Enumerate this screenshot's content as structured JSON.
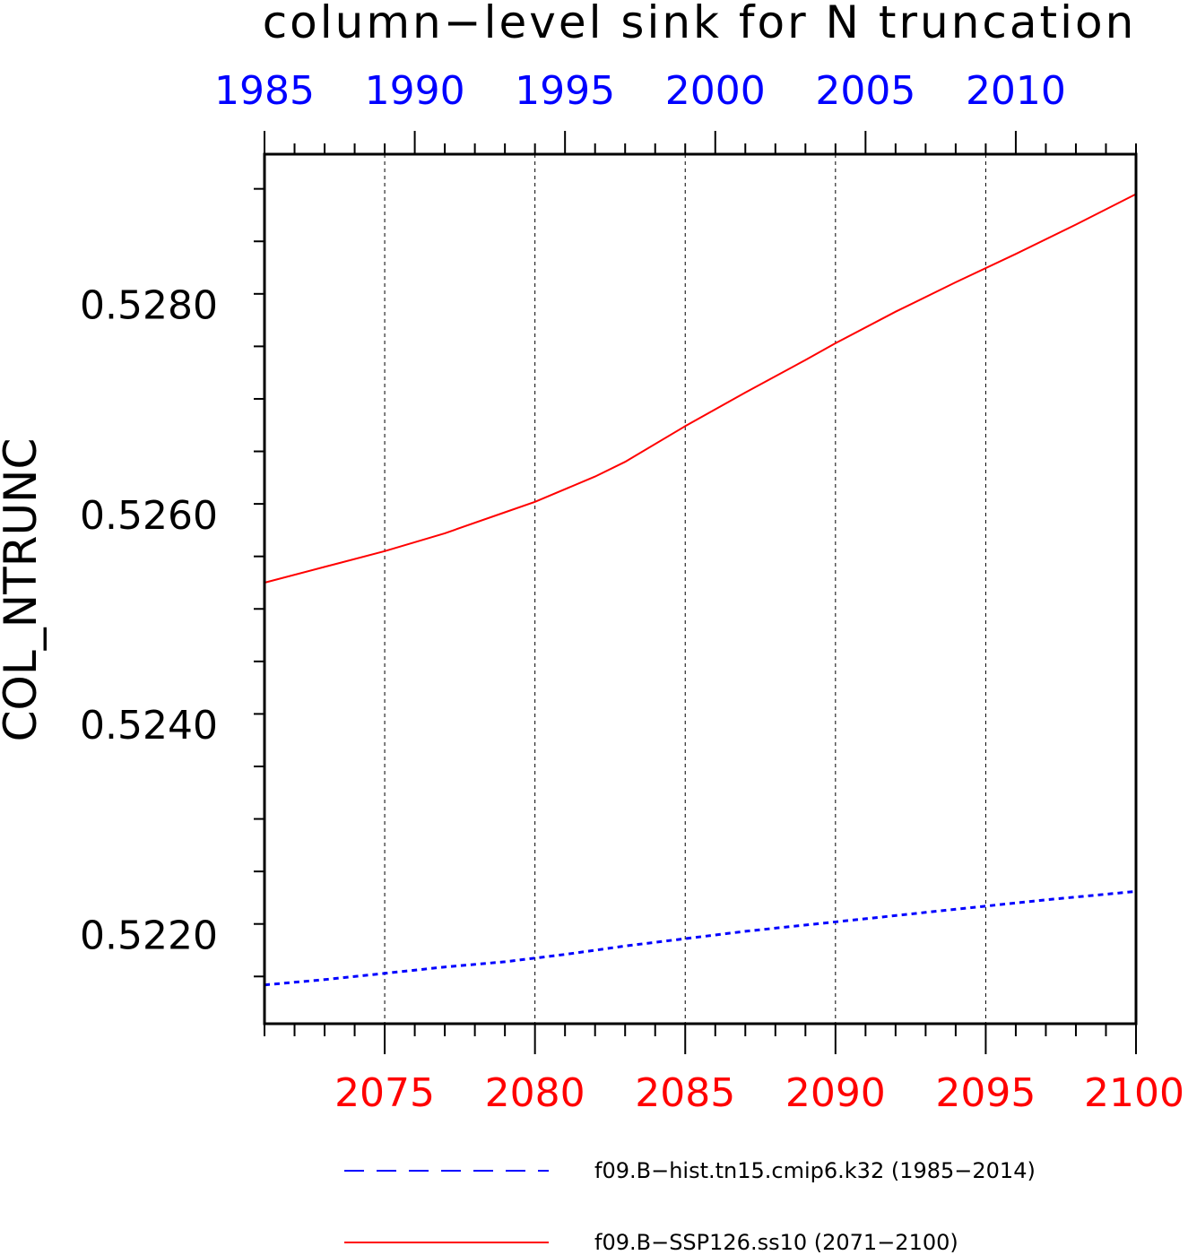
{
  "chart_data": {
    "type": "line",
    "title": "column−level sink for N truncation",
    "ylabel": "COL_NTRUNC",
    "ylim": [
      0.52115,
      0.52943
    ],
    "y_ticks": [
      "0.5220",
      "0.5240",
      "0.5260",
      "0.5280"
    ],
    "y_tick_values": [
      0.522,
      0.524,
      0.526,
      0.528
    ],
    "bottom_axis": {
      "color": "#ff0000",
      "range": [
        2071,
        2100
      ],
      "ticks": [
        "2075",
        "2080",
        "2085",
        "2090",
        "2095",
        "2100"
      ],
      "tick_values": [
        2075,
        2080,
        2085,
        2090,
        2095,
        2100
      ]
    },
    "top_axis": {
      "color": "#0000ff",
      "range": [
        1985,
        2014
      ],
      "ticks": [
        "1985",
        "1990",
        "1995",
        "2000",
        "2005",
        "2010"
      ],
      "tick_values": [
        1985,
        1990,
        1995,
        2000,
        2005,
        2010
      ]
    },
    "grid": "vertical dashed",
    "legend_position": "bottom",
    "series": [
      {
        "name": "f09.B−hist.tn15.cmip6.k32 (1985−2014)",
        "color": "#0000ff",
        "style": "dashed",
        "axis": "top",
        "x": [
          1985,
          1987,
          1989,
          1991,
          1993,
          1995,
          1997,
          1999,
          2001,
          2003,
          2005,
          2007,
          2009,
          2011,
          2014
        ],
        "y": [
          0.52152,
          0.52157,
          0.52163,
          0.52169,
          0.52174,
          0.52181,
          0.52189,
          0.52196,
          0.52203,
          0.52209,
          0.52215,
          0.52221,
          0.52227,
          0.52233,
          0.52241
        ]
      },
      {
        "name": "f09.B−SSP126.ss10 (2071−2100)",
        "color": "#ff0000",
        "style": "solid",
        "axis": "bottom",
        "x": [
          2071,
          2073,
          2075,
          2077,
          2079,
          2080,
          2082,
          2083,
          2085,
          2087,
          2089,
          2090,
          2092,
          2094,
          2096,
          2098,
          2100
        ],
        "y": [
          0.52535,
          0.5255,
          0.52565,
          0.52582,
          0.52602,
          0.52612,
          0.52636,
          0.5265,
          0.52684,
          0.52716,
          0.52747,
          0.52763,
          0.52793,
          0.52821,
          0.52848,
          0.52876,
          0.52905
        ]
      }
    ]
  }
}
